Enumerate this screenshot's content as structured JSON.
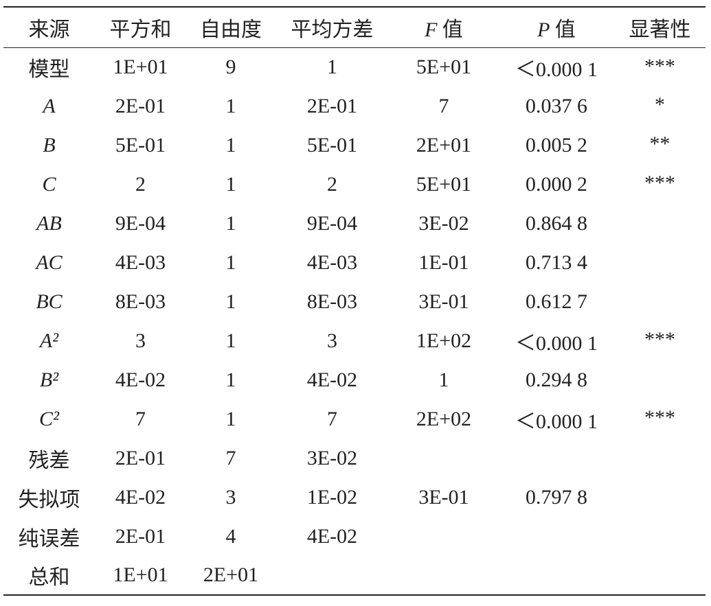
{
  "table": {
    "header": [
      "来源",
      "平方和",
      "自由度",
      "平均方差",
      "F 值",
      "P 值",
      "显著性"
    ],
    "rows": [
      [
        "模型",
        "1E+01",
        "9",
        "1",
        "5E+01",
        "＜0.000 1",
        "***"
      ],
      [
        "A",
        "2E-01",
        "1",
        "2E-01",
        "7",
        "0.037 6",
        "*"
      ],
      [
        "B",
        "5E-01",
        "1",
        "5E-01",
        "2E+01",
        "0.005 2",
        "**"
      ],
      [
        "C",
        "2",
        "1",
        "2",
        "5E+01",
        "0.000 2",
        "***"
      ],
      [
        "AB",
        "9E-04",
        "1",
        "9E-04",
        "3E-02",
        "0.864 8",
        null
      ],
      [
        "AC",
        "4E-03",
        "1",
        "4E-03",
        "1E-01",
        "0.713 4",
        null
      ],
      [
        "BC",
        "8E-03",
        "1",
        "8E-03",
        "3E-01",
        "0.612 7",
        null
      ],
      [
        "A²",
        "3",
        "1",
        "3",
        "1E+02",
        "＜0.000 1",
        "***"
      ],
      [
        "B²",
        "4E-02",
        "1",
        "4E-02",
        "1",
        "0.294 8",
        null
      ],
      [
        "C²",
        "7",
        "1",
        "7",
        "2E+02",
        "＜0.000 1",
        "***"
      ],
      [
        "残差",
        "2E-01",
        "7",
        "3E-02",
        null,
        null,
        null
      ],
      [
        "失拟项",
        "4E-02",
        "3",
        "1E-02",
        "3E-01",
        "0.797 8",
        null
      ],
      [
        "纯误差",
        "2E-01",
        "4",
        "4E-02",
        null,
        null,
        null
      ],
      [
        "总和",
        "1E+01",
        "2E+01",
        null,
        null,
        null,
        null
      ]
    ]
  }
}
